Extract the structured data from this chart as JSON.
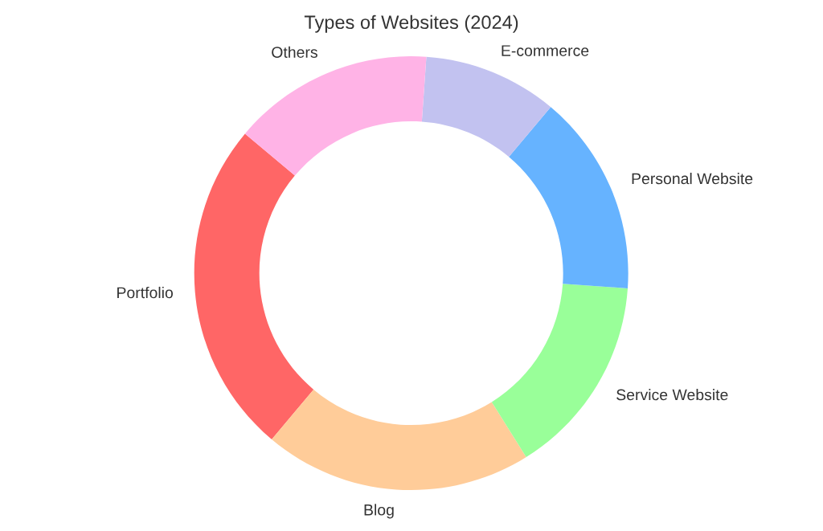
{
  "chart_data": {
    "type": "donut",
    "title": "Types of Websites (2024)",
    "categories": [
      "Portfolio",
      "Blog",
      "Service Website",
      "Personal Website",
      "E-commerce",
      "Others"
    ],
    "values": [
      25,
      20,
      15,
      15,
      10,
      15
    ],
    "colors": [
      "#ff6666",
      "#ffcc99",
      "#99ff99",
      "#66b3ff",
      "#c2c2f0",
      "#ffb3e6"
    ],
    "legend": false
  }
}
